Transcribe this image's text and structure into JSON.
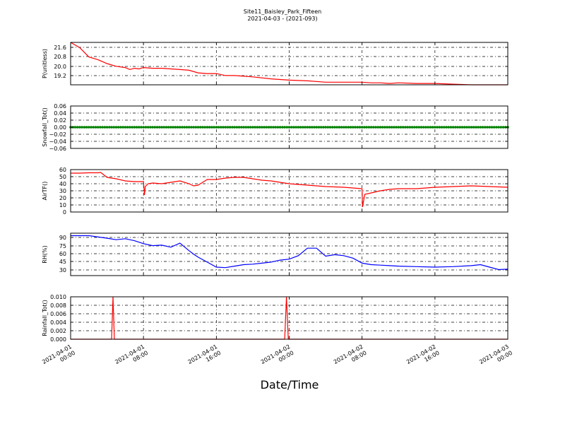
{
  "chart_data": [
    {
      "type": "line",
      "title": "Site11_Baisley_Park_Fifteen",
      "subtitle": "2021-04-03 - (2021-093)",
      "xlabel": "Date/Time",
      "ylabel": "P(unitless)",
      "xlim": [
        "2021-04-01 00:00",
        "2021-04-03 00:00"
      ],
      "x_ticks": [
        "2021-04-01\n00:00",
        "2021-04-01\n08:00",
        "2021-04-01\n16:00",
        "2021-04-02\n00:00",
        "2021-04-02\n08:00",
        "2021-04-02\n16:00",
        "2021-04-03\n00:00"
      ],
      "ylim": [
        18.6,
        21.8
      ],
      "y_ticks": [
        "19.2",
        "20.0",
        "20.8",
        "21.6"
      ],
      "color": "#ff0000",
      "grid": true,
      "series": [
        {
          "x_hours": [
            0,
            1,
            2,
            3,
            4,
            5,
            6,
            6.5,
            7,
            7.5,
            8,
            9,
            10,
            11,
            12,
            13,
            14,
            15,
            16,
            17,
            18,
            20,
            22,
            24,
            26,
            28,
            30,
            32,
            33,
            34,
            35,
            36,
            38,
            40,
            42,
            44,
            46,
            48
          ],
          "values": [
            21.8,
            21.4,
            20.7,
            20.5,
            20.2,
            20.0,
            19.9,
            19.75,
            19.85,
            19.8,
            19.9,
            19.85,
            19.85,
            19.8,
            19.75,
            19.7,
            19.5,
            19.45,
            19.45,
            19.3,
            19.3,
            19.2,
            19.05,
            18.95,
            18.9,
            18.8,
            18.8,
            18.8,
            18.75,
            18.75,
            18.7,
            18.75,
            18.7,
            18.7,
            18.65,
            18.6,
            18.6,
            18.6
          ]
        }
      ]
    },
    {
      "type": "scatter",
      "ylabel": "Snowfall_Tot()",
      "ylim": [
        -0.06,
        0.06
      ],
      "y_ticks": [
        "−0.06",
        "−0.04",
        "−0.02",
        "0.00",
        "0.02",
        "0.04",
        "0.06"
      ],
      "color": "#008000",
      "grid": true,
      "series": [
        {
          "x_hours_range": [
            0,
            48
          ],
          "step_hours": 0.25,
          "value": 0.0
        }
      ]
    },
    {
      "type": "line",
      "ylabel": "AirTF()",
      "ylim": [
        0,
        60
      ],
      "y_ticks": [
        "0",
        "10",
        "20",
        "30",
        "40",
        "50",
        "60"
      ],
      "color": "#ff0000",
      "grid": true,
      "series": [
        {
          "x_hours": [
            0,
            1,
            2,
            3,
            3.3,
            4,
            5,
            6,
            7,
            8,
            8.1,
            8.2,
            8.5,
            9,
            10,
            11,
            12,
            13,
            13.5,
            14,
            14.5,
            15,
            16,
            17,
            18,
            19,
            20,
            21,
            22,
            24,
            26,
            28,
            30,
            32,
            32.05,
            32.3,
            33,
            34,
            35,
            36,
            37,
            38,
            40,
            42,
            44,
            46,
            48
          ],
          "values": [
            55,
            55,
            55.5,
            55.5,
            56,
            49,
            47,
            44,
            43,
            43,
            24,
            36,
            40,
            41,
            40,
            42,
            44,
            40,
            37,
            38,
            42,
            46,
            46,
            48,
            49,
            49,
            47,
            45,
            44,
            40,
            38,
            36,
            35,
            33,
            7,
            25,
            27,
            30,
            32,
            33,
            33,
            33,
            35,
            36,
            37,
            36,
            35
          ]
        }
      ]
    },
    {
      "type": "line",
      "ylabel": "RH(%)",
      "ylim": [
        15,
        100
      ],
      "y_ticks": [
        "30",
        "45",
        "60",
        "75",
        "90"
      ],
      "color": "#0000ff",
      "grid": true,
      "series": [
        {
          "x_hours": [
            0,
            2,
            4,
            5,
            6,
            7,
            8,
            9,
            10,
            11,
            12,
            13,
            13.5,
            14,
            15,
            16,
            17,
            18,
            19,
            20,
            21,
            22,
            23,
            24,
            25,
            26,
            27,
            28,
            29,
            30,
            31,
            32,
            33,
            34,
            35,
            36,
            38,
            40,
            42,
            44,
            45,
            46,
            47,
            48
          ],
          "values": [
            95,
            95,
            90,
            87,
            89,
            85,
            79,
            75,
            76,
            72,
            80,
            65,
            58,
            52,
            42,
            32,
            31,
            34,
            37,
            38,
            40,
            42,
            46,
            48,
            55,
            70,
            70,
            54,
            57,
            55,
            50,
            40,
            37,
            36,
            35,
            34,
            33,
            32,
            33,
            35,
            37,
            32,
            27,
            28
          ]
        }
      ]
    },
    {
      "type": "line",
      "ylabel": "Rainfall_Tot()",
      "ylim": [
        0,
        0.01
      ],
      "y_ticks": [
        "0.000",
        "0.002",
        "0.004",
        "0.006",
        "0.008",
        "0.010"
      ],
      "color": "#ff0000",
      "grid": true,
      "series": [
        {
          "x_hours": [
            0,
            4.5,
            4.65,
            4.8,
            23.5,
            23.7,
            23.9,
            48
          ],
          "values": [
            0,
            0,
            0.01,
            0,
            0,
            0.01,
            0,
            0
          ]
        }
      ]
    }
  ]
}
